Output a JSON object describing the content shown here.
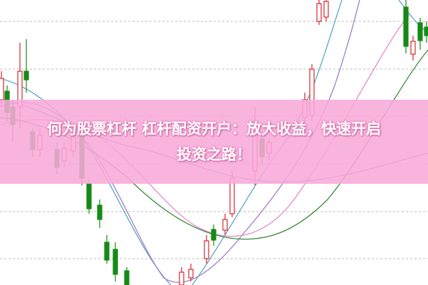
{
  "banner": {
    "lines": [
      "何为股票杠杆 杠杆配资开户：放大收益，快速开启",
      "投资之路！"
    ]
  }
}
